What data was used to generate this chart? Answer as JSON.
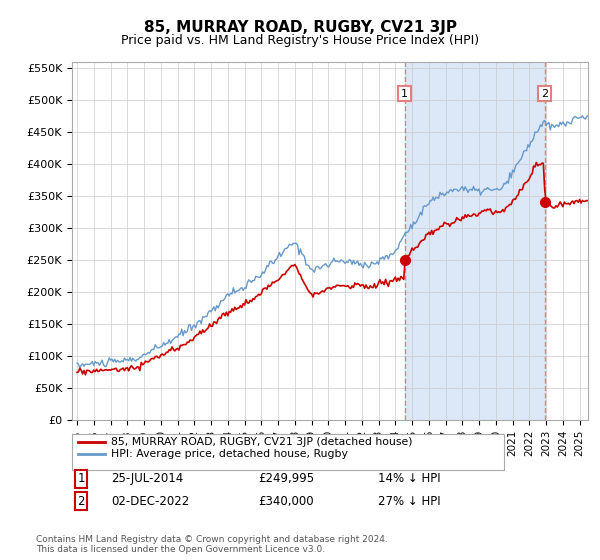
{
  "title": "85, MURRAY ROAD, RUGBY, CV21 3JP",
  "subtitle": "Price paid vs. HM Land Registry's House Price Index (HPI)",
  "title_fontsize": 11,
  "subtitle_fontsize": 9,
  "background_color": "#ffffff",
  "plot_bg_color": "#f0f4ff",
  "grid_color": "#cccccc",
  "hpi_color": "#6699cc",
  "sale_color": "#cc0000",
  "dashed_color": "#e08080",
  "shade_color": "#dce8f8",
  "ylim": [
    0,
    560000
  ],
  "yticks": [
    0,
    50000,
    100000,
    150000,
    200000,
    250000,
    300000,
    350000,
    400000,
    450000,
    500000,
    550000
  ],
  "ytick_labels": [
    "£0",
    "£50K",
    "£100K",
    "£150K",
    "£200K",
    "£250K",
    "£300K",
    "£350K",
    "£400K",
    "£450K",
    "£500K",
    "£550K"
  ],
  "sale1_date": "25-JUL-2014",
  "sale1_price": 249995,
  "sale1_label": "1",
  "sale1_x": 2014.56,
  "sale2_date": "02-DEC-2022",
  "sale2_price": 340000,
  "sale2_label": "2",
  "sale2_x": 2022.92,
  "legend_entry1": "85, MURRAY ROAD, RUGBY, CV21 3JP (detached house)",
  "legend_entry2": "HPI: Average price, detached house, Rugby",
  "footnote": "Contains HM Land Registry data © Crown copyright and database right 2024.\nThis data is licensed under the Open Government Licence v3.0.",
  "sale1_pct": "14% ↓ HPI",
  "sale2_pct": "27% ↓ HPI",
  "xmin": 1994.7,
  "xmax": 2025.5
}
